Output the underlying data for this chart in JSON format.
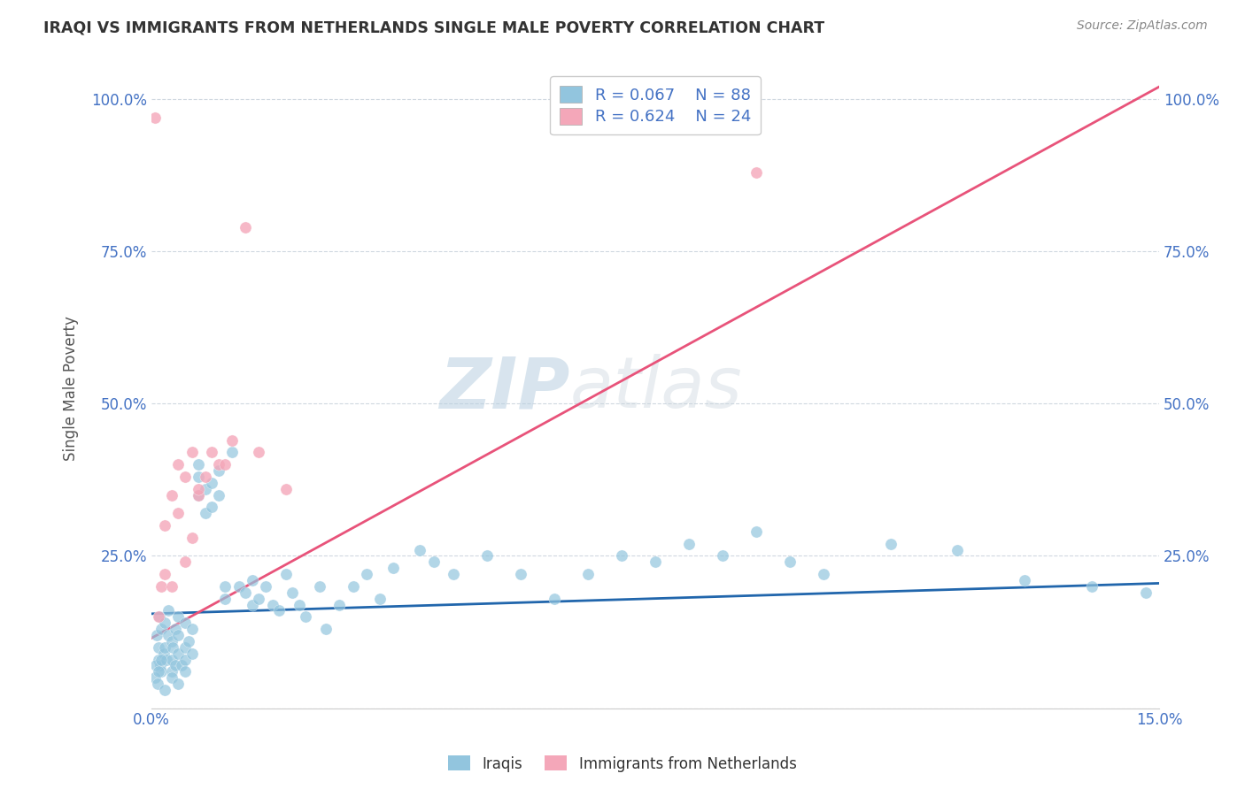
{
  "title": "IRAQI VS IMMIGRANTS FROM NETHERLANDS SINGLE MALE POVERTY CORRELATION CHART",
  "source": "Source: ZipAtlas.com",
  "ylabel": "Single Male Poverty",
  "xlim": [
    0.0,
    0.15
  ],
  "ylim": [
    0.0,
    1.05
  ],
  "x_tick_labels": [
    "0.0%",
    "15.0%"
  ],
  "x_ticks": [
    0.0,
    0.15
  ],
  "y_ticks": [
    0.0,
    0.25,
    0.5,
    0.75,
    1.0
  ],
  "y_tick_labels": [
    "",
    "25.0%",
    "50.0%",
    "75.0%",
    "100.0%"
  ],
  "legend_r1": "R = 0.067",
  "legend_n1": "N = 88",
  "legend_r2": "R = 0.624",
  "legend_n2": "N = 24",
  "color_iraqis": "#92c5de",
  "color_netherlands": "#f4a7b9",
  "color_iraqis_line": "#2166ac",
  "color_netherlands_line": "#e8537a",
  "watermark_zip": "ZIP",
  "watermark_atlas": "atlas",
  "iraqis_x": [
    0.0008,
    0.001,
    0.001,
    0.0012,
    0.0013,
    0.0015,
    0.0015,
    0.0018,
    0.002,
    0.002,
    0.0022,
    0.0025,
    0.0025,
    0.003,
    0.003,
    0.003,
    0.0032,
    0.0035,
    0.0035,
    0.004,
    0.004,
    0.004,
    0.0045,
    0.005,
    0.005,
    0.005,
    0.0055,
    0.006,
    0.006,
    0.007,
    0.007,
    0.007,
    0.008,
    0.008,
    0.009,
    0.009,
    0.01,
    0.01,
    0.011,
    0.011,
    0.012,
    0.013,
    0.014,
    0.015,
    0.015,
    0.016,
    0.017,
    0.018,
    0.019,
    0.02,
    0.021,
    0.022,
    0.023,
    0.025,
    0.026,
    0.028,
    0.03,
    0.032,
    0.034,
    0.036,
    0.04,
    0.042,
    0.045,
    0.05,
    0.055,
    0.06,
    0.065,
    0.07,
    0.075,
    0.08,
    0.085,
    0.09,
    0.095,
    0.1,
    0.11,
    0.12,
    0.13,
    0.14,
    0.148,
    0.0005,
    0.0007,
    0.0009,
    0.001,
    0.0015,
    0.002,
    0.003,
    0.004,
    0.005
  ],
  "iraqis_y": [
    0.12,
    0.1,
    0.08,
    0.15,
    0.07,
    0.13,
    0.06,
    0.09,
    0.14,
    0.1,
    0.08,
    0.12,
    0.16,
    0.11,
    0.08,
    0.06,
    0.1,
    0.13,
    0.07,
    0.09,
    0.12,
    0.15,
    0.07,
    0.14,
    0.1,
    0.08,
    0.11,
    0.13,
    0.09,
    0.35,
    0.4,
    0.38,
    0.36,
    0.32,
    0.37,
    0.33,
    0.39,
    0.35,
    0.18,
    0.2,
    0.42,
    0.2,
    0.19,
    0.17,
    0.21,
    0.18,
    0.2,
    0.17,
    0.16,
    0.22,
    0.19,
    0.17,
    0.15,
    0.2,
    0.13,
    0.17,
    0.2,
    0.22,
    0.18,
    0.23,
    0.26,
    0.24,
    0.22,
    0.25,
    0.22,
    0.18,
    0.22,
    0.25,
    0.24,
    0.27,
    0.25,
    0.29,
    0.24,
    0.22,
    0.27,
    0.26,
    0.21,
    0.2,
    0.19,
    0.05,
    0.07,
    0.04,
    0.06,
    0.08,
    0.03,
    0.05,
    0.04,
    0.06
  ],
  "netherlands_x": [
    0.0005,
    0.001,
    0.0015,
    0.002,
    0.002,
    0.003,
    0.003,
    0.004,
    0.004,
    0.005,
    0.005,
    0.006,
    0.006,
    0.007,
    0.007,
    0.008,
    0.009,
    0.01,
    0.011,
    0.012,
    0.014,
    0.016,
    0.02,
    0.09
  ],
  "netherlands_y": [
    0.97,
    0.15,
    0.2,
    0.22,
    0.3,
    0.2,
    0.35,
    0.32,
    0.4,
    0.38,
    0.24,
    0.28,
    0.42,
    0.35,
    0.36,
    0.38,
    0.42,
    0.4,
    0.4,
    0.44,
    0.79,
    0.42,
    0.36,
    0.88
  ],
  "iraqis_line_x": [
    0.0,
    0.15
  ],
  "iraqis_line_y": [
    0.155,
    0.205
  ],
  "netherlands_line_x": [
    0.0,
    0.15
  ],
  "netherlands_line_y": [
    0.115,
    1.02
  ]
}
